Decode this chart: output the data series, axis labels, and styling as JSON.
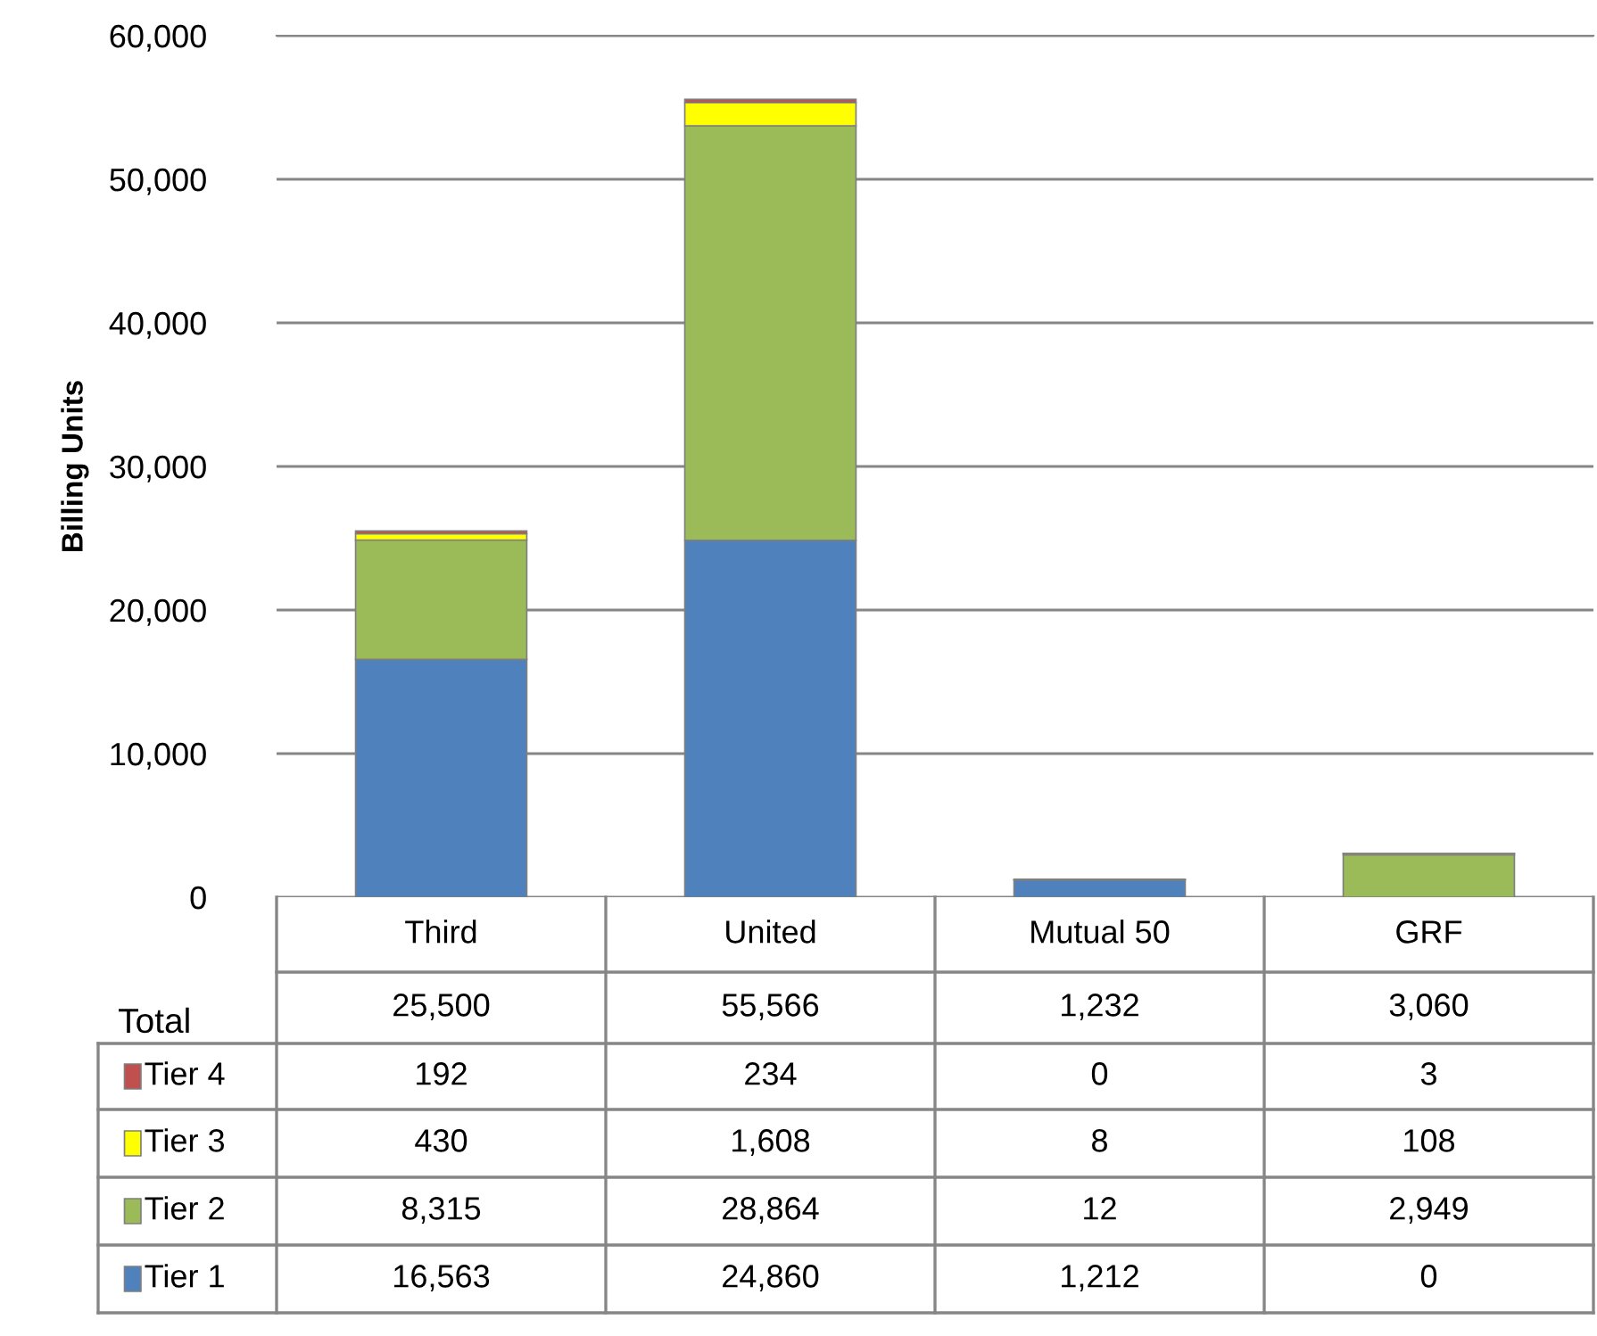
{
  "chart_data": {
    "type": "bar",
    "stacked": true,
    "ylabel": "Billing Units",
    "categories": [
      "Third",
      "United",
      "Mutual 50",
      "GRF"
    ],
    "series": [
      {
        "name": "Tier 1",
        "color": "#4f81bd",
        "values": [
          16563,
          24860,
          1212,
          0
        ],
        "value_labels": [
          "16,563",
          "24,860",
          "1,212",
          "0"
        ]
      },
      {
        "name": "Tier 2",
        "color": "#9bbb59",
        "values": [
          8315,
          28864,
          12,
          2949
        ],
        "value_labels": [
          "8,315",
          "28,864",
          "12",
          "2,949"
        ]
      },
      {
        "name": "Tier 3",
        "color": "#ffff00",
        "values": [
          430,
          1608,
          8,
          108
        ],
        "value_labels": [
          "430",
          "1,608",
          "8",
          "108"
        ]
      },
      {
        "name": "Tier 4",
        "color": "#c0504d",
        "values": [
          192,
          234,
          0,
          3
        ],
        "value_labels": [
          "192",
          "234",
          "0",
          "3"
        ]
      }
    ],
    "ylim": [
      0,
      60000
    ],
    "yticks": [
      {
        "value": 0,
        "label": "0"
      },
      {
        "value": 10000,
        "label": "10,000"
      },
      {
        "value": 20000,
        "label": "20,000"
      },
      {
        "value": 30000,
        "label": "30,000"
      },
      {
        "value": 40000,
        "label": "40,000"
      },
      {
        "value": 50000,
        "label": "50,000"
      },
      {
        "value": 60000,
        "label": "60,000"
      }
    ],
    "grid": "y",
    "legend": "bottom",
    "totals": [
      "25,500",
      "55,566",
      "1,232",
      "3,060"
    ],
    "annotations": [
      "Total"
    ]
  }
}
